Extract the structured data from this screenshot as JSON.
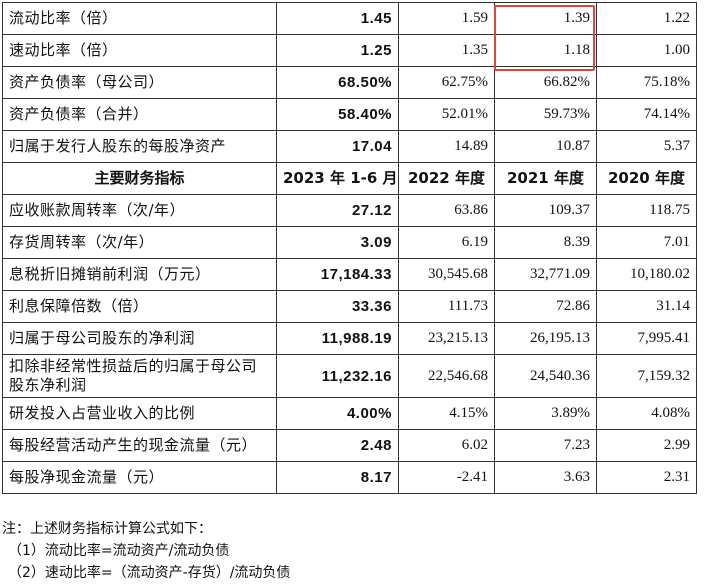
{
  "table": {
    "top_rows": [
      {
        "label": "流动比率（倍）",
        "values": [
          "1.45",
          "1.59",
          "1.39",
          "1.22"
        ]
      },
      {
        "label": "速动比率（倍）",
        "values": [
          "1.25",
          "1.35",
          "1.18",
          "1.00"
        ]
      },
      {
        "label": "资产负债率（母公司）",
        "values": [
          "68.50%",
          "62.75%",
          "66.82%",
          "75.18%"
        ]
      },
      {
        "label": "资产负债率（合并）",
        "values": [
          "58.40%",
          "52.01%",
          "59.73%",
          "74.14%"
        ]
      },
      {
        "label": "归属于发行人股东的每股净资产",
        "values": [
          "17.04",
          "14.89",
          "10.87",
          "5.37"
        ]
      }
    ],
    "header": [
      "主要财务指标",
      "2023 年 1-6 月",
      "2022 年度",
      "2021 年度",
      "2020 年度"
    ],
    "bottom_rows": [
      {
        "label": "应收账款周转率（次/年）",
        "values": [
          "27.12",
          "63.86",
          "109.37",
          "118.75"
        ]
      },
      {
        "label": "存货周转率（次/年）",
        "values": [
          "3.09",
          "6.19",
          "8.39",
          "7.01"
        ]
      },
      {
        "label": "息税折旧摊销前利润（万元）",
        "values": [
          "17,184.33",
          "30,545.68",
          "32,771.09",
          "10,180.02"
        ]
      },
      {
        "label": "利息保障倍数（倍）",
        "values": [
          "33.36",
          "111.73",
          "72.86",
          "31.14"
        ]
      },
      {
        "label": "归属于母公司股东的净利润",
        "values": [
          "11,988.19",
          "23,215.13",
          "26,195.13",
          "7,995.41"
        ]
      },
      {
        "label": "扣除非经常性损益后的归属于母公司股东净利润",
        "values": [
          "11,232.16",
          "22,546.68",
          "24,540.36",
          "7,159.32"
        ]
      },
      {
        "label": "研发投入占营业收入的比例",
        "values": [
          "4.00%",
          "4.15%",
          "3.89%",
          "4.08%"
        ]
      },
      {
        "label": "每股经营活动产生的现金流量（元）",
        "values": [
          "2.48",
          "6.02",
          "7.23",
          "2.99"
        ]
      },
      {
        "label": "每股净现金流量（元）",
        "values": [
          "8.17",
          "-2.41",
          "3.63",
          "2.31"
        ]
      }
    ]
  },
  "notes": {
    "title": "注：上述财务指标计算公式如下：",
    "items": [
      "（1）流动比率=流动资产/流动负债",
      "（2）速动比率=（流动资产-存货）/流动负债"
    ]
  },
  "highlight_color": "#e0453a"
}
